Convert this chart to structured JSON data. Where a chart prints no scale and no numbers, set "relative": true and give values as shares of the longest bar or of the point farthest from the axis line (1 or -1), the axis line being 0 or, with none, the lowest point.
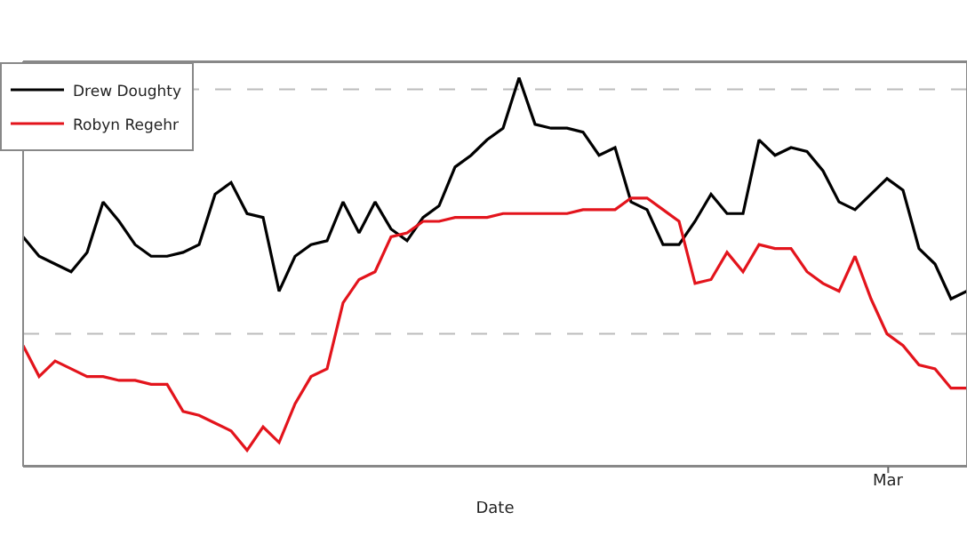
{
  "chart_data": {
    "type": "line",
    "relative": true,
    "xlabel": "Date",
    "legend": "top left",
    "line_style": "solid",
    "marker": "none",
    "categories": [
      null,
      null,
      null,
      null,
      null,
      null,
      null,
      null,
      null,
      null,
      null,
      null,
      null,
      null,
      null,
      null,
      null,
      null,
      null,
      null,
      null,
      null,
      null,
      null,
      null,
      null,
      null,
      null,
      null,
      null,
      null,
      null,
      null,
      null,
      null,
      null,
      null,
      null,
      null,
      null,
      null,
      null,
      null,
      null,
      null,
      null,
      null,
      null,
      null,
      null,
      null,
      null,
      null,
      null,
      null,
      null,
      null,
      null,
      null,
      null
    ],
    "annotations": [
      "Mar"
    ],
    "ref_lines": [
      {
        "axis": "y",
        "value": 0.97,
        "label": null,
        "color": "#bbbbbb",
        "line_style": "dashed"
      },
      {
        "axis": "y",
        "value": 0.34,
        "label": null,
        "color": "#bbbbbb",
        "line_style": "dashed"
      }
    ],
    "series": [
      {
        "name": "Drew Doughty",
        "color": "#000000",
        "values": [
          0.59,
          0.54,
          0.52,
          0.5,
          0.55,
          0.68,
          0.63,
          0.57,
          0.54,
          0.54,
          0.55,
          0.57,
          0.7,
          0.73,
          0.65,
          0.64,
          0.45,
          0.54,
          0.57,
          0.58,
          0.68,
          0.6,
          0.68,
          0.61,
          0.58,
          0.64,
          0.67,
          0.77,
          0.8,
          0.84,
          0.87,
          1,
          0.88,
          0.87,
          0.87,
          0.86,
          0.8,
          0.82,
          0.68,
          0.66,
          0.57,
          0.57,
          0.63,
          0.7,
          0.65,
          0.65,
          0.84,
          0.8,
          0.82,
          0.81,
          0.76,
          0.68,
          0.66,
          0.7,
          0.74,
          0.71,
          0.56,
          0.52,
          0.43,
          0.45
        ]
      },
      {
        "name": "Robyn Regehr",
        "color": "#e3141c",
        "values": [
          0.31,
          0.23,
          0.27,
          0.25,
          0.23,
          0.23,
          0.22,
          0.22,
          0.21,
          0.21,
          0.14,
          0.13,
          0.11,
          0.09,
          0.04,
          0.1,
          0.06,
          0.16,
          0.23,
          0.25,
          0.42,
          0.48,
          0.5,
          0.59,
          0.6,
          0.63,
          0.63,
          0.64,
          0.64,
          0.64,
          0.65,
          0.65,
          0.65,
          0.65,
          0.65,
          0.66,
          0.66,
          0.66,
          0.69,
          0.69,
          0.66,
          0.63,
          0.47,
          0.48,
          0.55,
          0.5,
          0.57,
          0.56,
          0.56,
          0.5,
          0.47,
          0.45,
          0.54,
          0.43,
          0.34,
          0.31,
          0.26,
          0.25,
          0.2,
          0.2
        ]
      }
    ]
  }
}
